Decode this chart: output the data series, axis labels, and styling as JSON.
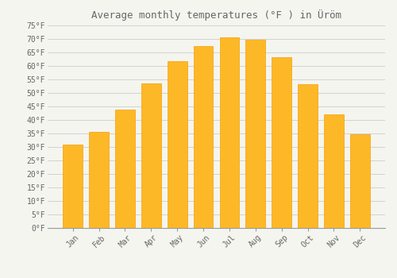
{
  "title": "Average monthly temperatures (°F ) in Üröm",
  "months": [
    "Jan",
    "Feb",
    "Mar",
    "Apr",
    "May",
    "Jun",
    "Jul",
    "Aug",
    "Sep",
    "Oct",
    "Nov",
    "Dec"
  ],
  "values": [
    30.7,
    35.4,
    43.7,
    53.4,
    61.7,
    67.1,
    70.5,
    69.6,
    63.1,
    53.2,
    41.9,
    34.7
  ],
  "bar_color": "#FDB827",
  "bar_edge_color": "#F5A000",
  "background_color": "#f5f5f0",
  "plot_bg_color": "#f5f5f0",
  "grid_color": "#cccccc",
  "ylim": [
    0,
    75
  ],
  "yticks": [
    0,
    5,
    10,
    15,
    20,
    25,
    30,
    35,
    40,
    45,
    50,
    55,
    60,
    65,
    70,
    75
  ],
  "ytick_labels": [
    "0°F",
    "5°F",
    "10°F",
    "15°F",
    "20°F",
    "25°F",
    "30°F",
    "35°F",
    "40°F",
    "45°F",
    "50°F",
    "55°F",
    "60°F",
    "65°F",
    "70°F",
    "75°F"
  ],
  "title_fontsize": 9,
  "tick_fontsize": 7,
  "font_family": "monospace",
  "text_color": "#666666"
}
